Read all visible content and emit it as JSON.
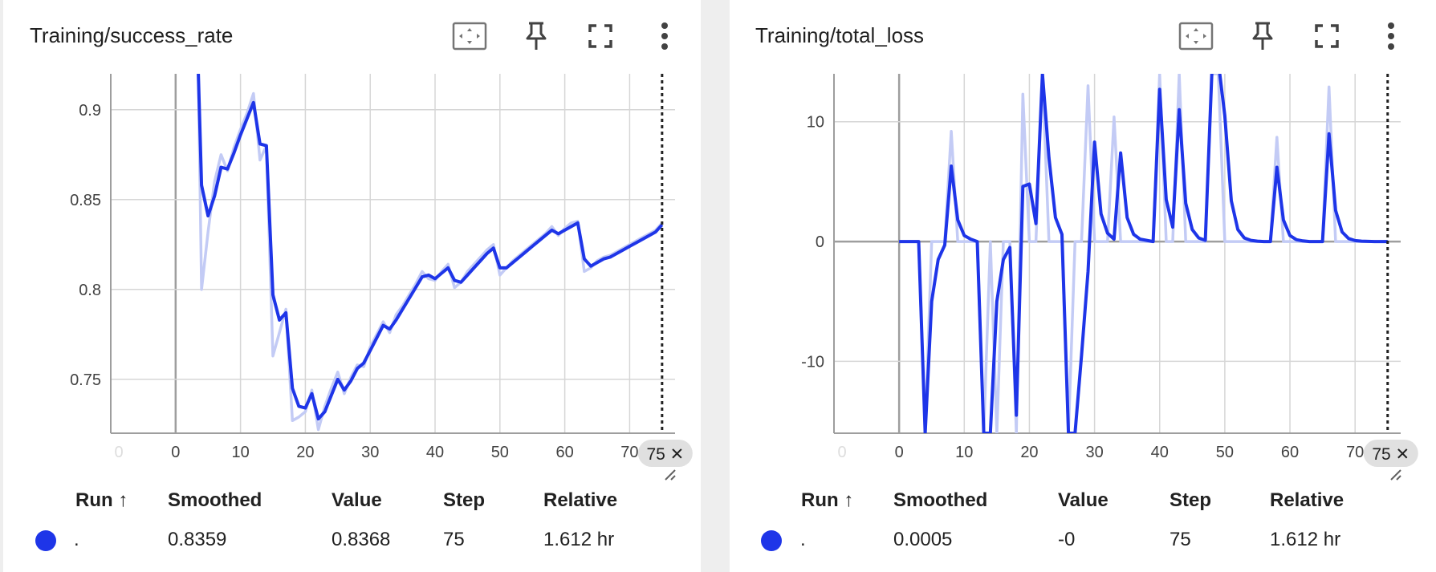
{
  "colors": {
    "series": "#1e35e8",
    "series_raw": "#c3cbf5",
    "grid": "#d6d6d6",
    "axis": "#9e9e9e",
    "icon": "#424242",
    "chip": "#e0e0e0"
  },
  "toolbar": {
    "icons": [
      "fit-domain-icon",
      "pin-icon",
      "fullscreen-icon",
      "more-vert-icon"
    ]
  },
  "legend": {
    "headers": {
      "run": "Run ↑",
      "smoothed": "Smoothed",
      "value": "Value",
      "step": "Step",
      "relative": "Relative"
    }
  },
  "cards": [
    {
      "title": "Training/success_rate",
      "row": {
        "run": ".",
        "smoothed": "0.8359",
        "value": "0.8368",
        "step": "75",
        "relative": "1.612 hr"
      },
      "step_chip": "75 ✕",
      "faint_tick": "0"
    },
    {
      "title": "Training/total_loss",
      "row": {
        "run": ".",
        "smoothed": "0.0005",
        "value": "-0",
        "step": "75",
        "relative": "1.612 hr"
      },
      "step_chip": "75 ✕",
      "faint_tick": "0"
    }
  ],
  "chart_data": [
    {
      "type": "line",
      "xlim": [
        -10,
        77
      ],
      "ylim": [
        0.72,
        0.92
      ],
      "xticks": [
        0,
        10,
        20,
        30,
        40,
        50,
        60,
        70
      ],
      "xtick_labels": [
        "0",
        "10",
        "20",
        "30",
        "40",
        "50",
        "60",
        "70"
      ],
      "yticks": [
        0.75,
        0.8,
        0.85,
        0.9
      ],
      "ytick_labels": [
        "0.75",
        "0.8",
        "0.85",
        "0.9"
      ],
      "cursor_step": 75,
      "grid": true,
      "series": [
        {
          "role": "smoothed",
          "x": [
            3.5,
            4,
            5,
            6,
            7,
            8,
            9,
            10,
            11,
            12,
            13,
            14,
            15,
            16,
            17,
            18,
            19,
            20,
            21,
            22,
            23,
            24,
            25,
            26,
            27,
            28,
            29,
            30,
            31,
            32,
            33,
            34,
            35,
            36,
            37,
            38,
            39,
            40,
            41,
            42,
            43,
            44,
            45,
            46,
            47,
            48,
            49,
            50,
            51,
            52,
            53,
            54,
            55,
            56,
            57,
            58,
            59,
            60,
            61,
            62,
            63,
            64,
            65,
            66,
            67,
            68,
            69,
            70,
            71,
            72,
            73,
            74,
            75
          ],
          "y": [
            0.92,
            0.858,
            0.841,
            0.852,
            0.868,
            0.867,
            0.876,
            0.886,
            0.895,
            0.904,
            0.881,
            0.88,
            0.797,
            0.783,
            0.787,
            0.745,
            0.735,
            0.734,
            0.742,
            0.728,
            0.732,
            0.741,
            0.75,
            0.744,
            0.749,
            0.756,
            0.759,
            0.766,
            0.773,
            0.78,
            0.778,
            0.783,
            0.789,
            0.795,
            0.801,
            0.807,
            0.808,
            0.806,
            0.809,
            0.812,
            0.805,
            0.804,
            0.808,
            0.812,
            0.816,
            0.82,
            0.823,
            0.812,
            0.812,
            0.815,
            0.818,
            0.821,
            0.824,
            0.827,
            0.83,
            0.833,
            0.831,
            0.833,
            0.835,
            0.837,
            0.817,
            0.813,
            0.815,
            0.817,
            0.818,
            0.82,
            0.822,
            0.824,
            0.826,
            0.828,
            0.83,
            0.832,
            0.836
          ]
        },
        {
          "role": "raw",
          "x": [
            3.5,
            4,
            5,
            6,
            7,
            8,
            9,
            10,
            11,
            12,
            13,
            14,
            15,
            16,
            17,
            18,
            19,
            20,
            21,
            22,
            23,
            24,
            25,
            26,
            27,
            28,
            29,
            30,
            31,
            32,
            33,
            34,
            35,
            36,
            37,
            38,
            39,
            40,
            41,
            42,
            43,
            44,
            45,
            46,
            47,
            48,
            49,
            50,
            51,
            52,
            53,
            54,
            55,
            56,
            57,
            58,
            59,
            60,
            61,
            62,
            63,
            64,
            65,
            66,
            67,
            68,
            69,
            70,
            71,
            72,
            73,
            74,
            75
          ],
          "y": [
            0.92,
            0.8,
            0.832,
            0.86,
            0.875,
            0.866,
            0.879,
            0.889,
            0.898,
            0.909,
            0.872,
            0.88,
            0.763,
            0.776,
            0.789,
            0.727,
            0.729,
            0.732,
            0.744,
            0.722,
            0.735,
            0.745,
            0.754,
            0.742,
            0.751,
            0.758,
            0.757,
            0.768,
            0.775,
            0.782,
            0.776,
            0.786,
            0.791,
            0.797,
            0.803,
            0.81,
            0.806,
            0.805,
            0.81,
            0.814,
            0.801,
            0.804,
            0.81,
            0.814,
            0.818,
            0.822,
            0.825,
            0.808,
            0.812,
            0.816,
            0.819,
            0.822,
            0.825,
            0.828,
            0.831,
            0.835,
            0.83,
            0.834,
            0.837,
            0.838,
            0.81,
            0.812,
            0.816,
            0.818,
            0.819,
            0.821,
            0.823,
            0.825,
            0.827,
            0.829,
            0.831,
            0.833,
            0.837
          ]
        }
      ]
    },
    {
      "type": "line",
      "xlim": [
        -10,
        77
      ],
      "ylim": [
        -16,
        14
      ],
      "xticks": [
        0,
        10,
        20,
        30,
        40,
        50,
        60,
        70
      ],
      "xtick_labels": [
        "0",
        "10",
        "20",
        "30",
        "40",
        "50",
        "60",
        "70"
      ],
      "yticks": [
        -10,
        0,
        10
      ],
      "ytick_labels": [
        "-10",
        "0",
        "10"
      ],
      "cursor_step": 75,
      "grid": true,
      "series": [
        {
          "role": "smoothed",
          "x": [
            0,
            1,
            2,
            3,
            4,
            5,
            6,
            7,
            8,
            9,
            10,
            11,
            12,
            13,
            14,
            15,
            16,
            17,
            18,
            19,
            20,
            21,
            22,
            23,
            24,
            25,
            26,
            27,
            28,
            29,
            30,
            31,
            32,
            33,
            34,
            35,
            36,
            37,
            38,
            39,
            40,
            41,
            42,
            43,
            44,
            45,
            46,
            47,
            48,
            49,
            50,
            51,
            52,
            53,
            54,
            55,
            56,
            57,
            58,
            59,
            60,
            61,
            62,
            63,
            64,
            65,
            66,
            67,
            68,
            69,
            70,
            71,
            72,
            73,
            74,
            75
          ],
          "y": [
            0,
            0,
            0,
            0,
            -16,
            -5,
            -1.5,
            -0.3,
            6.3,
            1.8,
            0.5,
            0.2,
            0,
            -16,
            -16,
            -5,
            -1.5,
            -0.5,
            -14.5,
            4.6,
            4.8,
            1.5,
            14,
            7,
            2,
            0.6,
            -16,
            -16,
            -9.5,
            -2.5,
            8.3,
            2.3,
            0.7,
            0.2,
            7.4,
            2.0,
            0.6,
            0.2,
            0.1,
            0,
            12.7,
            3.5,
            1.2,
            11.0,
            3.2,
            1.0,
            0.3,
            0.1,
            14,
            15,
            10.5,
            3.4,
            1.0,
            0.3,
            0.1,
            0.03,
            0,
            0,
            6.2,
            1.8,
            0.5,
            0.15,
            0.05,
            0,
            0,
            0,
            9.0,
            2.6,
            0.8,
            0.25,
            0.08,
            0.03,
            0.01,
            0,
            0,
            0
          ]
        },
        {
          "role": "raw",
          "x": [
            0,
            1,
            2,
            3,
            4,
            5,
            6,
            7,
            8,
            9,
            10,
            11,
            12,
            13,
            14,
            15,
            16,
            17,
            18,
            19,
            20,
            21,
            22,
            23,
            24,
            25,
            26,
            27,
            28,
            29,
            30,
            31,
            32,
            33,
            34,
            35,
            36,
            37,
            38,
            39,
            40,
            41,
            42,
            43,
            44,
            45,
            46,
            47,
            48,
            49,
            50,
            51,
            52,
            53,
            54,
            55,
            56,
            57,
            58,
            59,
            60,
            61,
            62,
            63,
            64,
            65,
            66,
            67,
            68,
            69,
            70,
            71,
            72,
            73,
            74,
            75
          ],
          "y": [
            0,
            0,
            0,
            0,
            -16,
            0,
            0,
            0,
            9.2,
            0,
            0,
            0,
            0,
            -16,
            0,
            -16,
            0,
            0,
            -16,
            12.3,
            0,
            0,
            14,
            0,
            0,
            0,
            -16,
            0,
            0,
            13,
            0,
            0,
            0,
            10.4,
            0,
            0,
            0,
            0,
            0,
            0,
            14,
            0,
            0,
            14,
            0,
            0,
            0,
            0,
            14,
            14,
            0,
            0,
            0,
            0,
            0,
            0,
            0,
            0,
            8.7,
            0,
            0,
            0,
            0,
            0,
            0,
            0,
            12.9,
            0,
            0,
            0,
            0,
            0,
            0,
            0,
            0,
            0
          ]
        }
      ]
    }
  ]
}
